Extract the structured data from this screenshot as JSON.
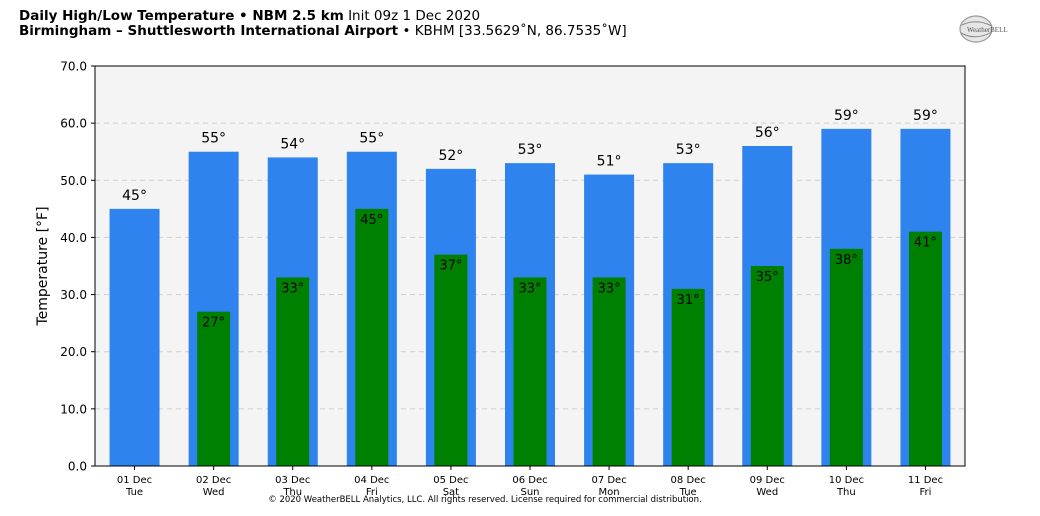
{
  "header": {
    "title_bold": "Daily High/Low Temperature • NBM 2.5 km",
    "init": "Init 09z 1 Dec 2020",
    "location_bold": "Birmingham – Shuttlesworth International Airport",
    "location_detail": "• KBHM [33.5629˚N, 86.7535˚W]"
  },
  "logo_text": "WeatherBELL",
  "copyright": "© 2020 WeatherBELL Analytics, LLC. All rights reserved. License required for commercial distribution.",
  "colors": {
    "high": "#2e83ee",
    "low": "#008000",
    "plot_bg": "#f4f4f4"
  },
  "chart_data": {
    "type": "bar",
    "ylabel": "Temperature [°F]",
    "ylim": [
      0,
      70
    ],
    "yticks": [
      "0.0",
      "10.0",
      "20.0",
      "30.0",
      "40.0",
      "50.0",
      "60.0",
      "70.0"
    ],
    "ytick_values": [
      0,
      10,
      20,
      30,
      40,
      50,
      60,
      70
    ],
    "grid": true,
    "categories": [
      {
        "date": "01 Dec",
        "day": "Tue"
      },
      {
        "date": "02 Dec",
        "day": "Wed"
      },
      {
        "date": "03 Dec",
        "day": "Thu"
      },
      {
        "date": "04 Dec",
        "day": "Fri"
      },
      {
        "date": "05 Dec",
        "day": "Sat"
      },
      {
        "date": "06 Dec",
        "day": "Sun"
      },
      {
        "date": "07 Dec",
        "day": "Mon"
      },
      {
        "date": "08 Dec",
        "day": "Tue"
      },
      {
        "date": "09 Dec",
        "day": "Wed"
      },
      {
        "date": "10 Dec",
        "day": "Thu"
      },
      {
        "date": "11 Dec",
        "day": "Fri"
      }
    ],
    "series": [
      {
        "values": [
          45,
          55,
          54,
          55,
          52,
          53,
          51,
          53,
          56,
          59,
          59
        ],
        "labels": [
          "45°",
          "55°",
          "54°",
          "55°",
          "52°",
          "53°",
          "51°",
          "53°",
          "56°",
          "59°",
          "59°"
        ]
      },
      {
        "values": [
          null,
          27,
          33,
          45,
          37,
          33,
          33,
          31,
          35,
          38,
          41
        ],
        "labels": [
          "",
          "27°",
          "33°",
          "45°",
          "37°",
          "33°",
          "33°",
          "31°",
          "35°",
          "38°",
          "41°"
        ]
      }
    ]
  }
}
